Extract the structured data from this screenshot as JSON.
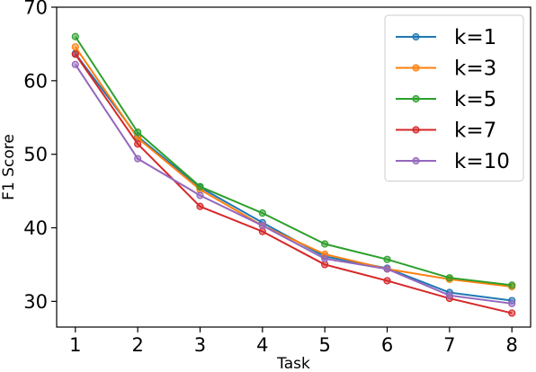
{
  "chart_data": {
    "type": "line",
    "xlabel": "Task",
    "ylabel": "F1 Score",
    "x": [
      1,
      2,
      3,
      4,
      5,
      6,
      7,
      8
    ],
    "xlim": [
      0.7,
      8.3
    ],
    "ylim": [
      26.5,
      70
    ],
    "yticks": [
      30,
      40,
      50,
      60,
      70
    ],
    "xticks": [
      1,
      2,
      3,
      4,
      5,
      6,
      7,
      8
    ],
    "grid": false,
    "legend_position": "top-right",
    "series": [
      {
        "name": "k=1",
        "color": "#1f77b4",
        "values": [
          63.7,
          52.4,
          45.5,
          40.7,
          36.1,
          34.5,
          31.2,
          30.1
        ]
      },
      {
        "name": "k=3",
        "color": "#ff7f0e",
        "values": [
          64.6,
          52.2,
          45.2,
          40.3,
          36.4,
          34.4,
          33.0,
          32.0
        ]
      },
      {
        "name": "k=5",
        "color": "#2ca02c",
        "values": [
          66.0,
          53.0,
          45.6,
          42.0,
          37.8,
          35.7,
          33.2,
          32.2
        ]
      },
      {
        "name": "k=7",
        "color": "#d62728",
        "values": [
          63.6,
          51.4,
          42.9,
          39.5,
          35.0,
          32.8,
          30.4,
          28.4
        ]
      },
      {
        "name": "k=10",
        "color": "#9467bd",
        "values": [
          62.2,
          49.4,
          44.4,
          40.3,
          35.8,
          34.4,
          30.8,
          29.7
        ]
      }
    ]
  }
}
